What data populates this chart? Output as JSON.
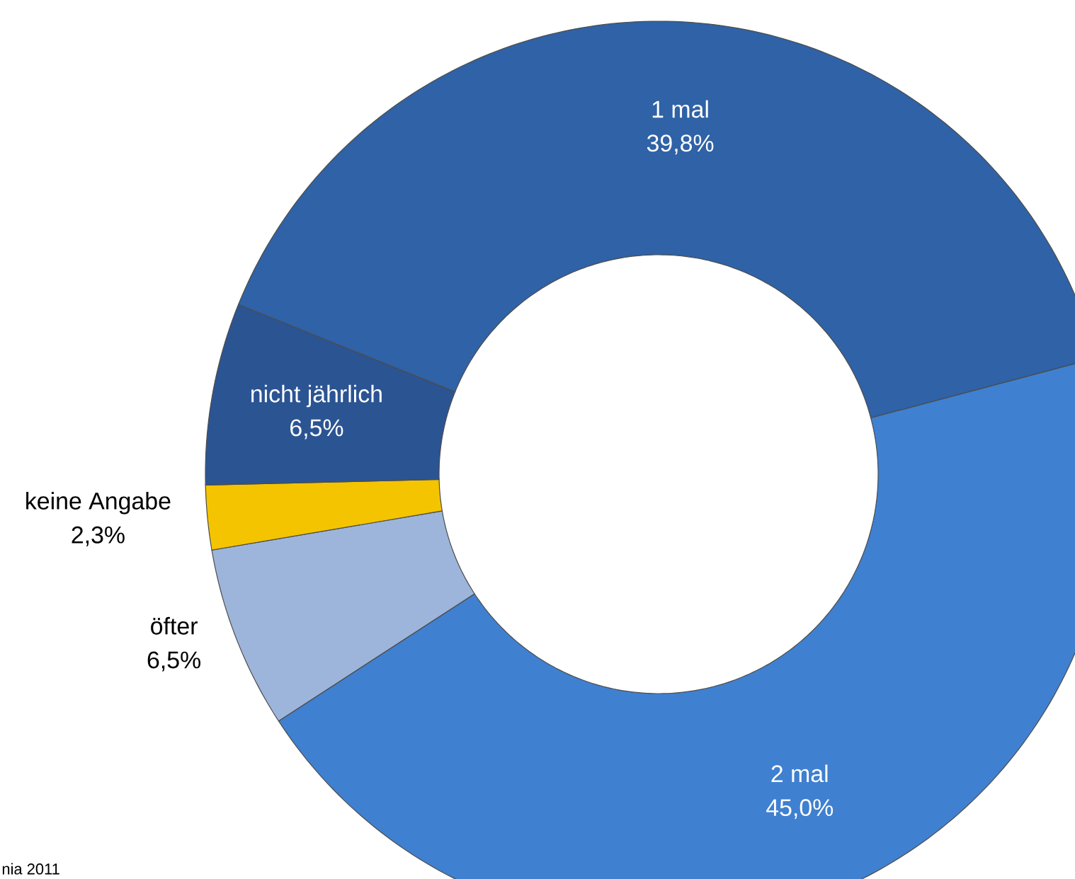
{
  "chart_data": {
    "type": "donut",
    "categories": [
      "1 mal",
      "2 mal",
      "öfter",
      "keine Angabe",
      "nicht jährlich"
    ],
    "values": [
      39.8,
      45.0,
      6.5,
      2.3,
      6.5
    ],
    "colors": [
      "#2f62a6",
      "#3f80d0",
      "#9db5da",
      "#f5c400",
      "#2b5493"
    ],
    "value_labels": [
      "39,8%",
      "45,0%",
      "6,5%",
      "2,3%",
      "6,5%"
    ],
    "annotations": [
      "nia 2011"
    ]
  }
}
